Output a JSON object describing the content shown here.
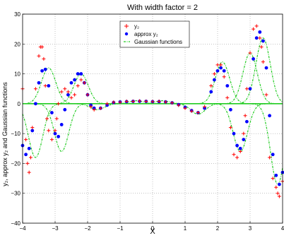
{
  "chart_data": {
    "type": "scatter",
    "title": "With width factor = 2",
    "xlabel": "X",
    "ylabel": "y₂, approx y₂ and Gaussian functions",
    "xlim": [
      -4,
      4
    ],
    "ylim": [
      -40,
      30
    ],
    "xticks": [
      "−4",
      "−3",
      "−2",
      "−1",
      "0",
      "1",
      "2",
      "3",
      "4"
    ],
    "yticks": [
      "−40",
      "−30",
      "−20",
      "−10",
      "0",
      "10",
      "20",
      "30"
    ],
    "grid": true,
    "legend_position": "top-center",
    "legend": [
      "y₂",
      "approx y₂",
      "Gaussian functions"
    ],
    "series": [
      {
        "name": "y₂",
        "marker": "+",
        "color": "#ff0000",
        "x": [
          -4,
          -3.9,
          -3.85,
          -3.8,
          -3.75,
          -3.7,
          -3.6,
          -3.5,
          -3.45,
          -3.4,
          -3.35,
          -3.3,
          -3.25,
          -3.2,
          -3.1,
          -3.0,
          -2.95,
          -2.9,
          -2.8,
          -2.7,
          -2.6,
          -2.5,
          -2.4,
          -2.3,
          -2.2,
          -2.1,
          -2.0,
          -1.9,
          -1.8,
          -1.6,
          -1.4,
          -1.2,
          -1.0,
          -0.8,
          -0.6,
          -0.4,
          -0.2,
          0,
          0.2,
          0.4,
          0.6,
          0.8,
          1.0,
          1.2,
          1.4,
          1.6,
          1.8,
          1.9,
          2.0,
          2.1,
          2.2,
          2.3,
          2.4,
          2.5,
          2.6,
          2.7,
          2.8,
          2.85,
          2.9,
          3.0,
          3.1,
          3.2,
          3.3,
          3.35,
          3.4,
          3.5,
          3.6,
          3.7,
          3.8,
          3.85,
          3.9,
          4.0
        ],
        "y": [
          5,
          -12,
          -20,
          -23,
          -18,
          -8,
          5,
          16,
          19,
          19,
          15,
          6,
          -5,
          -9,
          -12,
          -9,
          -5,
          0,
          4,
          5,
          4,
          2,
          3,
          6,
          8,
          7,
          3,
          -1,
          -2,
          -1.5,
          0,
          0.5,
          0.5,
          0.8,
          0.8,
          0.9,
          0.8,
          0.7,
          0.8,
          0.6,
          0.3,
          -0.5,
          -1.5,
          -2.5,
          -3,
          -1,
          6,
          10,
          13,
          13,
          9,
          2,
          -8,
          -17,
          -18,
          -16,
          -10,
          -4,
          5,
          17,
          25,
          26,
          22,
          19,
          14,
          3,
          -18,
          -25,
          -28,
          -30,
          -31,
          -26
        ]
      },
      {
        "name": "approx y₂",
        "marker": "*",
        "color": "#0000ff",
        "x": [
          -4,
          -3.9,
          -3.8,
          -3.7,
          -3.6,
          -3.5,
          -3.4,
          -3.3,
          -3.2,
          -3.1,
          -3.0,
          -2.9,
          -2.8,
          -2.7,
          -2.6,
          -2.5,
          -2.4,
          -2.3,
          -2.2,
          -2.1,
          -2.0,
          -1.9,
          -1.8,
          -1.6,
          -1.4,
          -1.2,
          -1.0,
          -0.8,
          -0.6,
          -0.4,
          -0.2,
          0,
          0.2,
          0.4,
          0.6,
          0.8,
          1.0,
          1.2,
          1.4,
          1.6,
          1.8,
          1.9,
          2.0,
          2.1,
          2.2,
          2.3,
          2.4,
          2.5,
          2.6,
          2.7,
          2.8,
          2.9,
          3.0,
          3.1,
          3.2,
          3.3,
          3.4,
          3.5,
          3.6,
          3.7,
          3.8,
          3.9,
          4.0
        ],
        "y": [
          -14,
          -17,
          -15,
          -9,
          0,
          7,
          11,
          11.5,
          6,
          -3,
          -10,
          -11,
          -7,
          -2,
          3,
          7,
          8,
          10,
          10,
          7,
          3,
          -0.5,
          -1.5,
          -1.5,
          -0.5,
          0.4,
          0.6,
          0.7,
          0.8,
          0.8,
          0.8,
          0.7,
          0.7,
          0.6,
          0.3,
          -0.3,
          -1.2,
          -2.3,
          -3,
          -1.5,
          4,
          8,
          11,
          12,
          11,
          6,
          -2,
          -10,
          -14,
          -15,
          -12,
          -6,
          5,
          15,
          22,
          24,
          21,
          12,
          -4,
          -17,
          -24,
          -27,
          -23
        ]
      },
      {
        "name": "Gaussian functions",
        "marker": "-.",
        "color": "#22cc22",
        "kernels": [
          {
            "center": -3.6,
            "amplitude": -18,
            "width": 0.22
          },
          {
            "center": -3.2,
            "amplitude": 12,
            "width": 0.22
          },
          {
            "center": -2.8,
            "amplitude": -16,
            "width": 0.22
          },
          {
            "center": -2.2,
            "amplitude": 10,
            "width": 0.22
          },
          {
            "center": -1.7,
            "amplitude": -2,
            "width": 0.22
          },
          {
            "center": -0.5,
            "amplitude": 1,
            "width": 0.22
          },
          {
            "center": 0.3,
            "amplitude": 1,
            "width": 0.22
          },
          {
            "center": 1.4,
            "amplitude": -3.5,
            "width": 0.22
          },
          {
            "center": 2.15,
            "amplitude": 14,
            "width": 0.22
          },
          {
            "center": 2.7,
            "amplitude": -16,
            "width": 0.22
          },
          {
            "center": 3.0,
            "amplitude": 17,
            "width": 0.22
          },
          {
            "center": 3.4,
            "amplitude": 22,
            "width": 0.22
          },
          {
            "center": 3.85,
            "amplitude": -27,
            "width": 0.22
          }
        ]
      }
    ]
  }
}
